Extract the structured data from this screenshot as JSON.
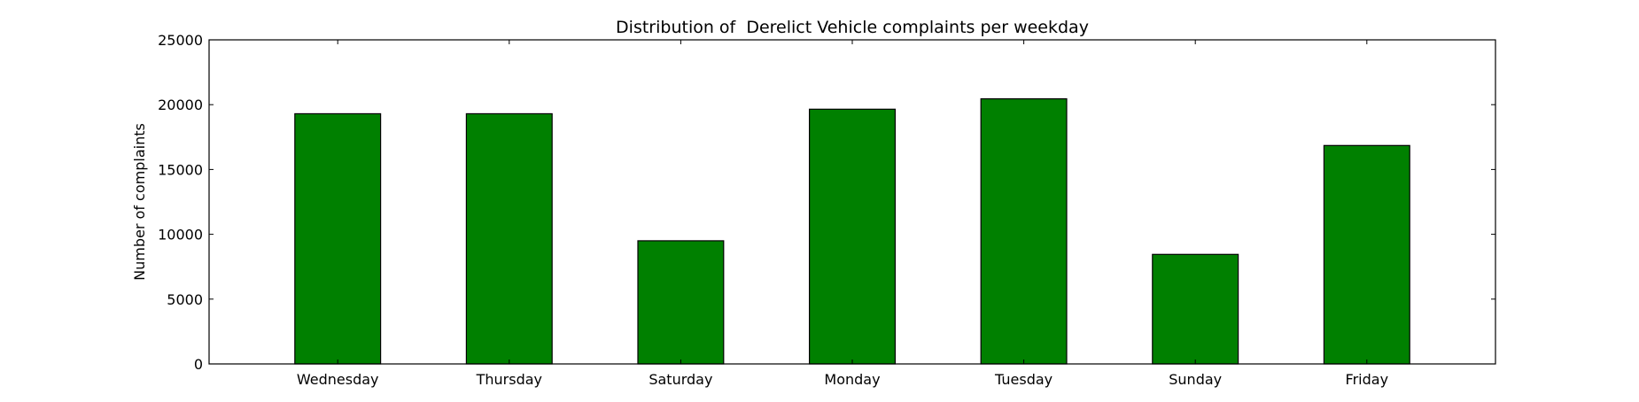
{
  "chart_data": {
    "type": "bar",
    "title": "Distribution of  Derelict Vehicle complaints per weekday",
    "xlabel": "",
    "ylabel": "Number of complaints",
    "categories": [
      "Wednesday",
      "Thursday",
      "Saturday",
      "Monday",
      "Tuesday",
      "Sunday",
      "Friday"
    ],
    "values": [
      19300,
      19300,
      9500,
      19650,
      20450,
      8450,
      16850
    ],
    "ylim": [
      0,
      25000
    ],
    "yticks": [
      0,
      5000,
      10000,
      15000,
      20000,
      25000
    ],
    "grid": false,
    "legend": "none",
    "bar_color": "#008000",
    "edge_color": "#000000"
  }
}
